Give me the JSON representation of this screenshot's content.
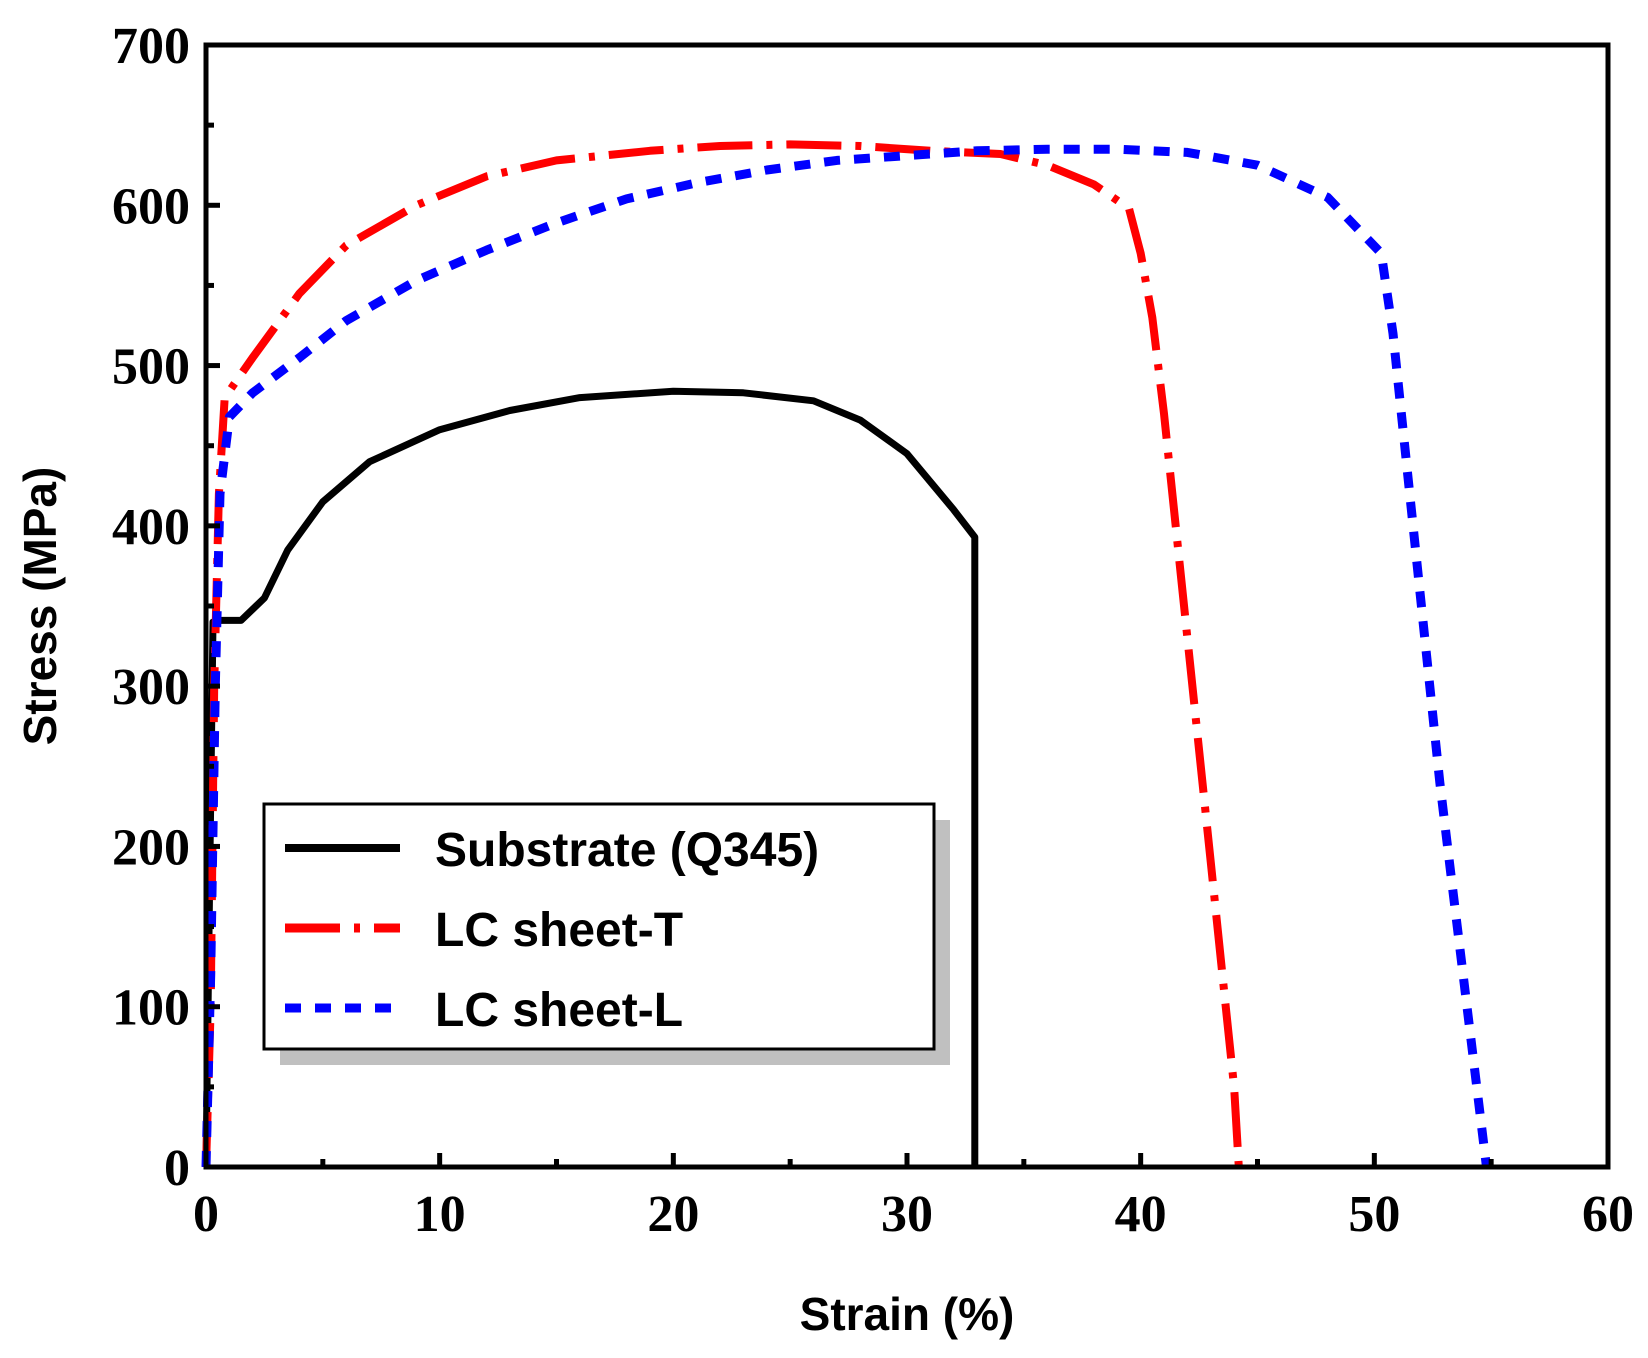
{
  "chart_data": {
    "type": "line",
    "title": "",
    "xlabel": "Strain (%)",
    "ylabel": "Stress (MPa)",
    "xlim": [
      0,
      60
    ],
    "ylim": [
      0,
      700
    ],
    "xticks": [
      0,
      10,
      20,
      30,
      40,
      50,
      60
    ],
    "yticks": [
      0,
      100,
      200,
      300,
      400,
      500,
      600,
      700
    ],
    "xtick_labels": [
      "0",
      "10",
      "20",
      "30",
      "40",
      "50",
      "60"
    ],
    "ytick_labels": [
      "0",
      "100",
      "200",
      "300",
      "400",
      "500",
      "600",
      "700"
    ],
    "grid": false,
    "legend_position": "bottom-left",
    "series": [
      {
        "name": "Substrate (Q345)",
        "color": "#000000",
        "style": "solid",
        "points": [
          [
            0,
            0
          ],
          [
            0.3,
            340
          ],
          [
            0.6,
            341
          ],
          [
            1.5,
            341
          ],
          [
            2.5,
            355
          ],
          [
            3.5,
            385
          ],
          [
            5,
            415
          ],
          [
            7,
            440
          ],
          [
            10,
            460
          ],
          [
            13,
            472
          ],
          [
            16,
            480
          ],
          [
            20,
            484
          ],
          [
            23,
            483
          ],
          [
            26,
            478
          ],
          [
            28,
            466
          ],
          [
            30,
            445
          ],
          [
            32,
            410
          ],
          [
            32.9,
            393
          ],
          [
            32.9,
            0
          ]
        ]
      },
      {
        "name": "LC sheet-T",
        "color": "#ff0000",
        "style": "dashdot",
        "points": [
          [
            0,
            0
          ],
          [
            0.2,
            100
          ],
          [
            0.35,
            300
          ],
          [
            0.55,
            420
          ],
          [
            0.8,
            480
          ],
          [
            2,
            505
          ],
          [
            4,
            545
          ],
          [
            6,
            575
          ],
          [
            9,
            600
          ],
          [
            12,
            618
          ],
          [
            15,
            628
          ],
          [
            19,
            634
          ],
          [
            22,
            637
          ],
          [
            25,
            638
          ],
          [
            28,
            637
          ],
          [
            31,
            634
          ],
          [
            34,
            632
          ],
          [
            36,
            625
          ],
          [
            38,
            613
          ],
          [
            39.5,
            598
          ],
          [
            40,
            570
          ],
          [
            40.5,
            530
          ],
          [
            41,
            470
          ],
          [
            41.5,
            400
          ],
          [
            42,
            330
          ],
          [
            42.5,
            260
          ],
          [
            43,
            190
          ],
          [
            43.5,
            120
          ],
          [
            44,
            50
          ],
          [
            44.2,
            0
          ]
        ]
      },
      {
        "name": "LC sheet-L",
        "color": "#0000ff",
        "style": "dash",
        "points": [
          [
            0,
            0
          ],
          [
            0.2,
            120
          ],
          [
            0.4,
            300
          ],
          [
            0.6,
            420
          ],
          [
            1,
            468
          ],
          [
            2,
            483
          ],
          [
            4,
            505
          ],
          [
            6,
            528
          ],
          [
            9,
            553
          ],
          [
            12,
            572
          ],
          [
            15,
            589
          ],
          [
            18,
            604
          ],
          [
            21,
            614
          ],
          [
            24,
            622
          ],
          [
            27,
            628
          ],
          [
            30,
            631
          ],
          [
            33,
            634
          ],
          [
            36,
            635
          ],
          [
            39,
            635
          ],
          [
            42,
            633
          ],
          [
            45,
            625
          ],
          [
            48,
            605
          ],
          [
            50.3,
            570
          ],
          [
            50.8,
            520
          ],
          [
            51.3,
            450
          ],
          [
            51.8,
            380
          ],
          [
            52.3,
            310
          ],
          [
            52.8,
            240
          ],
          [
            53.3,
            180
          ],
          [
            53.8,
            120
          ],
          [
            54.3,
            60
          ],
          [
            54.8,
            0
          ]
        ]
      }
    ]
  }
}
